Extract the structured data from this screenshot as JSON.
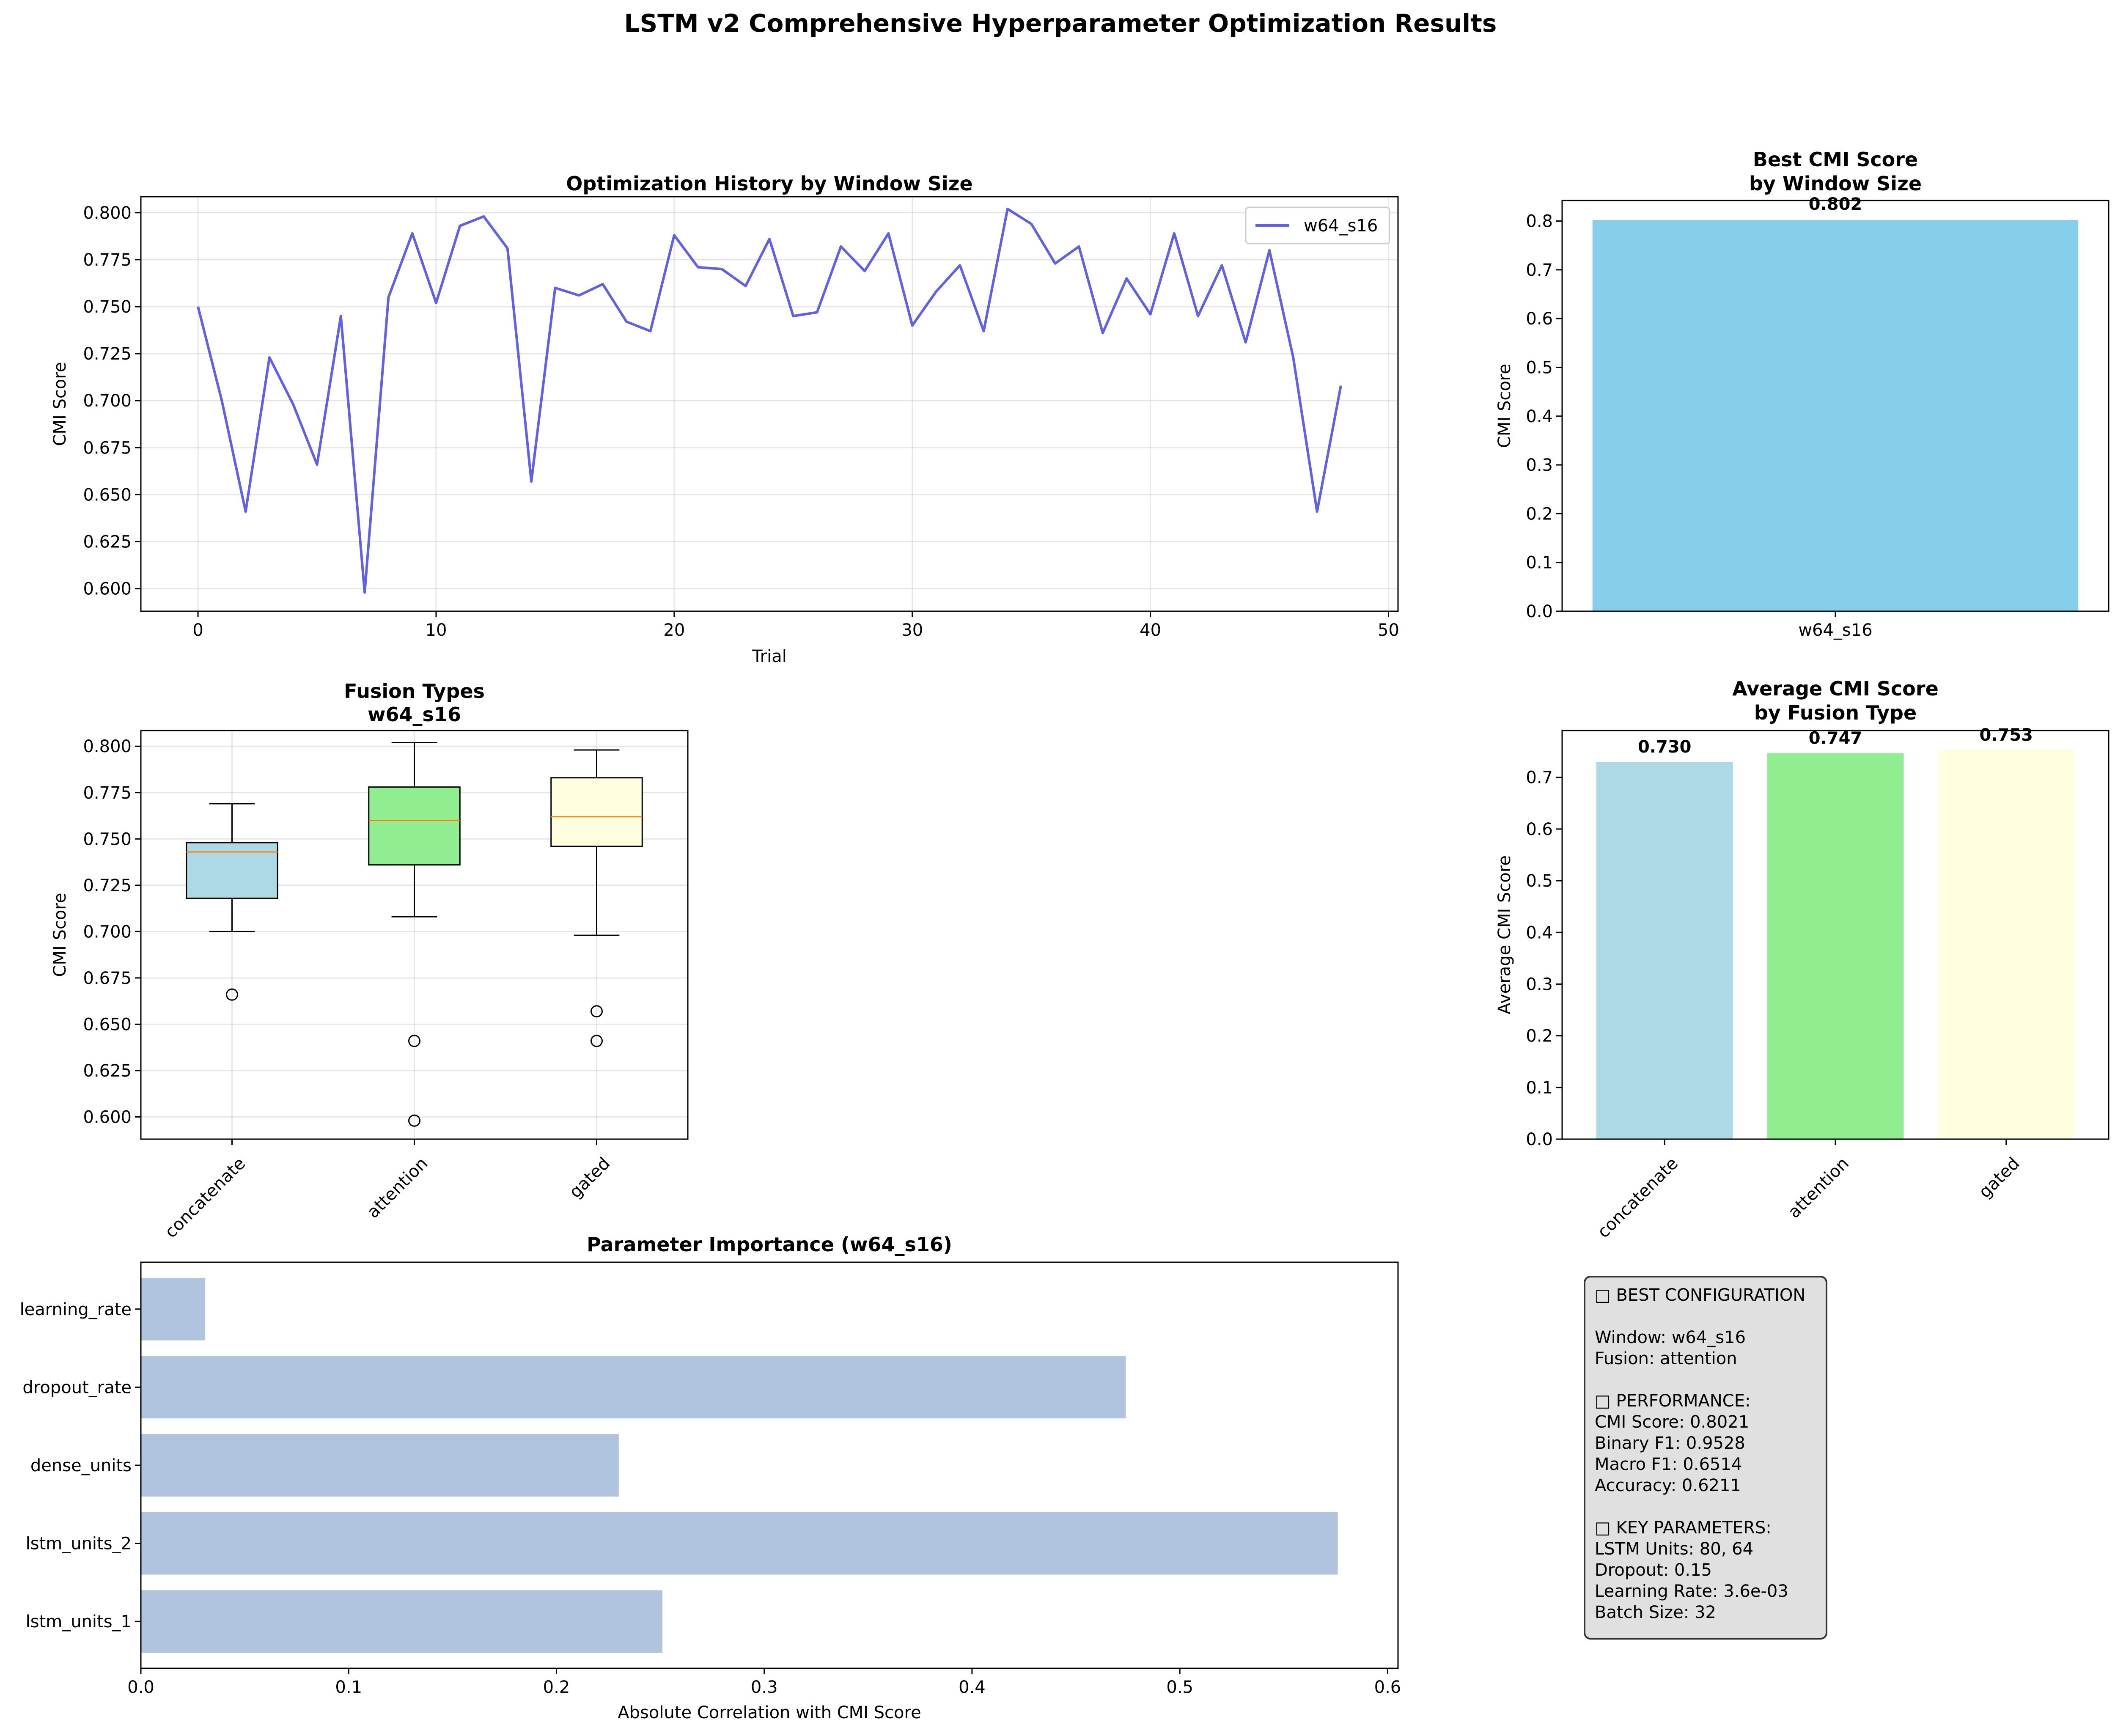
{
  "figure": {
    "title": "LSTM v2 Comprehensive Hyperparameter Optimization Results"
  },
  "chart_data": [
    {
      "id": "history",
      "type": "line",
      "title": "Optimization History by Window Size",
      "xlabel": "Trial",
      "ylabel": "CMI Score",
      "xlim": [
        -2.4,
        50.4
      ],
      "ylim": [
        0.588,
        0.8085
      ],
      "xticks": [
        "0",
        "10",
        "20",
        "30",
        "40",
        "50"
      ],
      "yticks": [
        "0.600",
        "0.625",
        "0.650",
        "0.675",
        "0.700",
        "0.725",
        "0.750",
        "0.775",
        "0.800"
      ],
      "grid": true,
      "legend": "top-right",
      "color": "#3a3ae0",
      "series": [
        {
          "name": "w64_s16",
          "x": [
            0,
            1,
            2,
            3,
            4,
            5,
            6,
            7,
            8,
            9,
            10,
            11,
            12,
            13,
            14,
            15,
            16,
            17,
            18,
            19,
            20,
            21,
            22,
            23,
            24,
            25,
            26,
            27,
            28,
            29,
            30,
            31,
            32,
            33,
            34,
            35,
            36,
            37,
            38,
            39,
            40,
            41,
            42,
            43,
            44,
            45,
            46,
            47,
            48
          ],
          "y": [
            0.75,
            0.7,
            0.641,
            0.723,
            0.698,
            0.666,
            0.745,
            0.598,
            0.755,
            0.789,
            0.752,
            0.793,
            0.798,
            0.781,
            0.657,
            0.76,
            0.756,
            0.762,
            0.742,
            0.737,
            0.788,
            0.771,
            0.77,
            0.761,
            0.786,
            0.745,
            0.747,
            0.782,
            0.769,
            0.789,
            0.74,
            0.758,
            0.772,
            0.737,
            0.802,
            0.794,
            0.773,
            0.782,
            0.736,
            0.765,
            0.746,
            0.789,
            0.745,
            0.772,
            0.731,
            0.78,
            0.723,
            0.641,
            0.708
          ]
        }
      ]
    },
    {
      "id": "best",
      "type": "bar",
      "title": "Best CMI Score\nby Window Size",
      "xlabel": "",
      "ylabel": "CMI Score",
      "ylim": [
        0,
        0.8421
      ],
      "yticks": [
        "0.0",
        "0.1",
        "0.2",
        "0.3",
        "0.4",
        "0.5",
        "0.6",
        "0.7",
        "0.8"
      ],
      "categories": [
        "w64_s16"
      ],
      "values": [
        0.802
      ],
      "labels": [
        "0.802"
      ],
      "color": "#87ceeb"
    },
    {
      "id": "fusion_box",
      "type": "box",
      "title": "Fusion Types\nw64_s16",
      "xlabel": "",
      "ylabel": "CMI Score",
      "ylim": [
        0.588,
        0.8085
      ],
      "yticks": [
        "0.600",
        "0.625",
        "0.650",
        "0.675",
        "0.700",
        "0.725",
        "0.750",
        "0.775",
        "0.800"
      ],
      "grid": true,
      "categories": [
        "concatenate",
        "attention",
        "gated"
      ],
      "boxes": [
        {
          "q1": 0.718,
          "median": 0.743,
          "q3": 0.748,
          "whislo": 0.7,
          "whishi": 0.769,
          "fliers": [
            0.666
          ],
          "color": "#add8e6"
        },
        {
          "q1": 0.736,
          "median": 0.76,
          "q3": 0.778,
          "whislo": 0.708,
          "whishi": 0.802,
          "fliers": [
            0.641,
            0.598
          ],
          "color": "#90ee90"
        },
        {
          "q1": 0.746,
          "median": 0.762,
          "q3": 0.783,
          "whislo": 0.698,
          "whishi": 0.798,
          "fliers": [
            0.657,
            0.641
          ],
          "color": "#ffffe0"
        }
      ]
    },
    {
      "id": "fusion_avg",
      "type": "bar",
      "title": "Average CMI Score\nby Fusion Type",
      "xlabel": "",
      "ylabel": "Average CMI Score",
      "ylim": [
        0,
        0.7906
      ],
      "yticks": [
        "0.0",
        "0.1",
        "0.2",
        "0.3",
        "0.4",
        "0.5",
        "0.6",
        "0.7"
      ],
      "categories": [
        "concatenate",
        "attention",
        "gated"
      ],
      "values": [
        0.73,
        0.747,
        0.753
      ],
      "labels": [
        "0.730",
        "0.747",
        "0.753"
      ],
      "colors": [
        "#add8e6",
        "#90ee90",
        "#ffffe0"
      ]
    },
    {
      "id": "importance",
      "type": "barh",
      "title": "Parameter Importance (w64_s16)",
      "xlabel": "Absolute Correlation with CMI Score",
      "ylabel": "",
      "xlim": [
        0,
        0.605
      ],
      "xticks": [
        "0.0",
        "0.1",
        "0.2",
        "0.3",
        "0.4",
        "0.5",
        "0.6"
      ],
      "categories": [
        "lstm_units_1",
        "lstm_units_2",
        "dense_units",
        "dropout_rate",
        "learning_rate"
      ],
      "values": [
        0.251,
        0.576,
        0.23,
        0.474,
        0.031
      ],
      "color": "#b0c4de"
    }
  ],
  "summary_box": {
    "lines": [
      "□ BEST CONFIGURATION",
      "",
      "Window: w64_s16",
      "Fusion: attention",
      "",
      "□ PERFORMANCE:",
      "CMI Score: 0.8021",
      "Binary F1: 0.9528",
      "Macro F1: 0.6514",
      "Accuracy: 0.6211",
      "",
      "□ KEY PARAMETERS:",
      "LSTM Units: 80, 64",
      "Dropout: 0.15",
      "Learning Rate: 3.6e-03",
      "Batch Size: 32"
    ]
  }
}
